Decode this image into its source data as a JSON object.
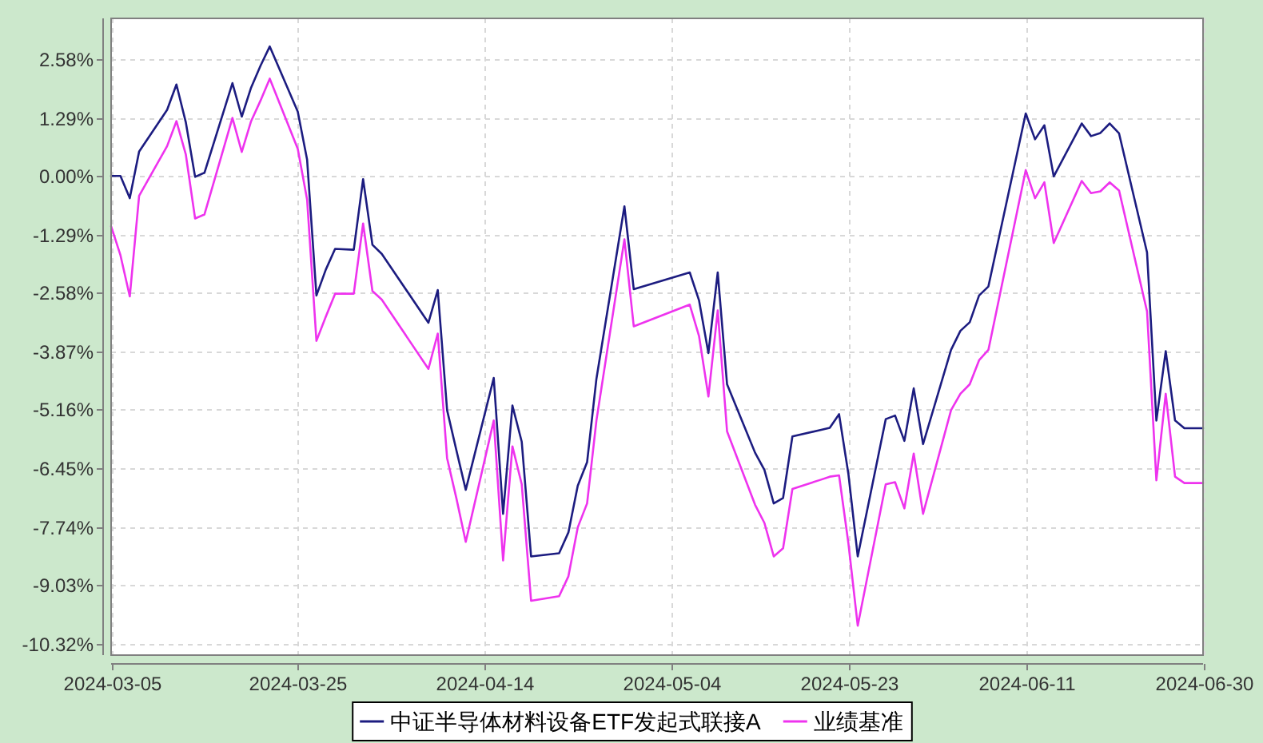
{
  "chart_data": {
    "type": "line",
    "x": [
      "2024-03-05",
      "2024-03-06",
      "2024-03-07",
      "2024-03-08",
      "2024-03-11",
      "2024-03-12",
      "2024-03-13",
      "2024-03-14",
      "2024-03-15",
      "2024-03-18",
      "2024-03-19",
      "2024-03-20",
      "2024-03-21",
      "2024-03-22",
      "2024-03-25",
      "2024-03-26",
      "2024-03-27",
      "2024-03-28",
      "2024-03-29",
      "2024-03-31",
      "2024-04-01",
      "2024-04-02",
      "2024-04-03",
      "2024-04-08",
      "2024-04-09",
      "2024-04-10",
      "2024-04-11",
      "2024-04-12",
      "2024-04-15",
      "2024-04-16",
      "2024-04-17",
      "2024-04-18",
      "2024-04-19",
      "2024-04-22",
      "2024-04-23",
      "2024-04-24",
      "2024-04-25",
      "2024-04-26",
      "2024-04-29",
      "2024-04-30",
      "2024-05-06",
      "2024-05-07",
      "2024-05-08",
      "2024-05-09",
      "2024-05-10",
      "2024-05-13",
      "2024-05-14",
      "2024-05-15",
      "2024-05-16",
      "2024-05-17",
      "2024-05-20",
      "2024-05-21",
      "2024-05-22",
      "2024-05-23",
      "2024-05-24",
      "2024-05-27",
      "2024-05-28",
      "2024-05-29",
      "2024-05-30",
      "2024-05-31",
      "2024-06-03",
      "2024-06-04",
      "2024-06-05",
      "2024-06-06",
      "2024-06-07",
      "2024-06-11",
      "2024-06-12",
      "2024-06-13",
      "2024-06-14",
      "2024-06-17",
      "2024-06-18",
      "2024-06-19",
      "2024-06-20",
      "2024-06-21",
      "2024-06-24",
      "2024-06-25",
      "2024-06-26",
      "2024-06-27",
      "2024-06-28",
      "2024-06-30"
    ],
    "series": [
      {
        "name": "中证半导体材料设备ETF发起式联接A",
        "color": "#1c1c80",
        "values": [
          0.0,
          0.0,
          -0.49,
          0.54,
          1.46,
          2.02,
          1.19,
          -0.02,
          0.07,
          2.05,
          1.31,
          1.95,
          2.43,
          2.86,
          1.42,
          0.36,
          -2.64,
          -2.07,
          -1.61,
          -1.63,
          -0.07,
          -1.52,
          -1.72,
          -3.24,
          -2.52,
          -5.17,
          -6.06,
          -6.93,
          -4.46,
          -7.46,
          -5.07,
          -5.87,
          -8.4,
          -8.33,
          -7.87,
          -6.84,
          -6.32,
          -4.48,
          -0.67,
          -2.5,
          -2.13,
          -2.75,
          -3.91,
          -2.13,
          -4.6,
          -6.11,
          -6.49,
          -7.23,
          -7.11,
          -5.75,
          -5.61,
          -5.56,
          -5.26,
          -6.58,
          -8.4,
          -5.37,
          -5.29,
          -5.85,
          -4.69,
          -5.92,
          -3.84,
          -3.42,
          -3.23,
          -2.64,
          -2.44,
          1.38,
          0.81,
          1.12,
          -0.01,
          1.16,
          0.88,
          0.95,
          1.16,
          0.94,
          -1.69,
          -5.4,
          -3.87,
          -5.4,
          -5.57,
          -5.57
        ]
      },
      {
        "name": "业绩基准",
        "color": "#ee33ee",
        "values": [
          -1.11,
          -1.75,
          -2.66,
          -0.44,
          0.66,
          1.21,
          0.48,
          -0.94,
          -0.85,
          1.28,
          0.53,
          1.21,
          1.66,
          2.15,
          0.6,
          -0.52,
          -3.64,
          -3.11,
          -2.6,
          -2.6,
          -1.05,
          -2.54,
          -2.73,
          -4.26,
          -3.48,
          -6.23,
          -7.12,
          -8.08,
          -5.4,
          -8.49,
          -5.97,
          -6.81,
          -9.38,
          -9.28,
          -8.84,
          -7.76,
          -7.23,
          -5.4,
          -1.4,
          -3.32,
          -2.84,
          -3.54,
          -4.87,
          -2.97,
          -5.64,
          -7.26,
          -7.66,
          -8.4,
          -8.22,
          -6.91,
          -6.71,
          -6.64,
          -6.61,
          -8.11,
          -9.93,
          -6.81,
          -6.76,
          -7.34,
          -6.13,
          -7.46,
          -5.17,
          -4.81,
          -4.6,
          -4.07,
          -3.84,
          0.13,
          -0.49,
          -0.14,
          -1.48,
          -0.11,
          -0.38,
          -0.34,
          -0.14,
          -0.32,
          -2.99,
          -6.72,
          -4.81,
          -6.64,
          -6.78,
          -6.78
        ]
      }
    ],
    "xlim": [
      "2024-03-05",
      "2024-06-30"
    ],
    "ylim": [
      -10.58,
      3.48
    ],
    "xticks": [
      "2024-03-05",
      "2024-03-25",
      "2024-04-14",
      "2024-05-04",
      "2024-05-23",
      "2024-06-11",
      "2024-06-30"
    ],
    "yticks": [
      {
        "value": -10.32,
        "label": "-10.32%"
      },
      {
        "value": -9.03,
        "label": "-9.03%"
      },
      {
        "value": -7.74,
        "label": "-7.74%"
      },
      {
        "value": -6.45,
        "label": "-6.45%"
      },
      {
        "value": -5.16,
        "label": "-5.16%"
      },
      {
        "value": -3.87,
        "label": "-3.87%"
      },
      {
        "value": -2.58,
        "label": "-2.58%"
      },
      {
        "value": -1.29,
        "label": "-1.29%"
      },
      {
        "value": 0,
        "label": "0.00%"
      },
      {
        "value": 1.29,
        "label": "1.29%"
      },
      {
        "value": 2.58,
        "label": "2.58%"
      }
    ],
    "grid": true,
    "legend": "bottom"
  }
}
